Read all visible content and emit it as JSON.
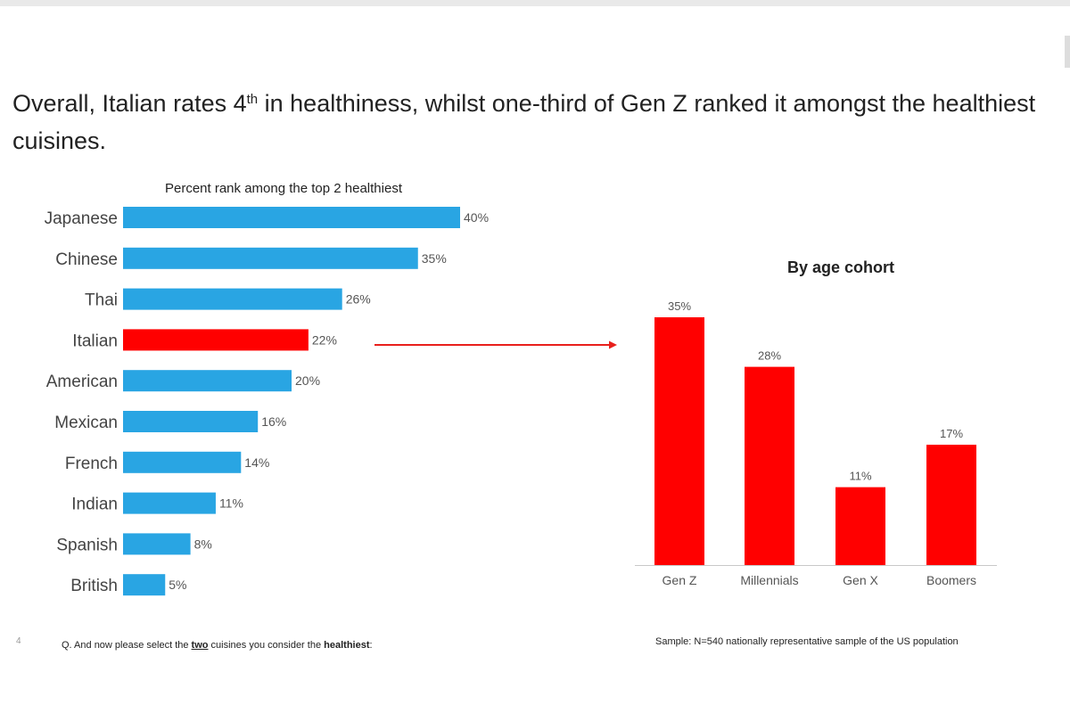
{
  "headline": {
    "part1": "Overall, Italian rates 4",
    "sup": "th",
    "part2": " in healthiness, whilst one-third of Gen Z ranked it amongst the healthiest cuisines."
  },
  "colors": {
    "blue": "#29a5e3",
    "highlight": "#ff0000",
    "arrow": "#e8201c"
  },
  "chart_data": [
    {
      "type": "bar",
      "orientation": "horizontal",
      "title": "Percent rank among the top 2 healthiest",
      "categories": [
        "Japanese",
        "Chinese",
        "Thai",
        "Italian",
        "American",
        "Mexican",
        "French",
        "Indian",
        "Spanish",
        "British"
      ],
      "values": [
        40,
        35,
        26,
        22,
        20,
        16,
        14,
        11,
        8,
        5
      ],
      "labels": [
        "40%",
        "35%",
        "26%",
        "22%",
        "20%",
        "16%",
        "14%",
        "11%",
        "8%",
        "5%"
      ],
      "highlight": "Italian",
      "xlim": [
        0,
        40
      ],
      "grid": false
    },
    {
      "type": "bar",
      "orientation": "vertical",
      "title": "By age cohort",
      "categories": [
        "Gen Z",
        "Millennials",
        "Gen X",
        "Boomers"
      ],
      "values": [
        35,
        28,
        11,
        17
      ],
      "labels": [
        "35%",
        "28%",
        "11%",
        "17%"
      ],
      "ylim": [
        0,
        35
      ],
      "grid": false
    }
  ],
  "footer": {
    "page_number": "4",
    "question_prefix": "Q. And now please select the ",
    "question_emph1": "two",
    "question_mid": " cuisines you consider the ",
    "question_emph2": "healthiest",
    "question_suffix": ":",
    "sample": "Sample: N=540 nationally representative sample of the US population"
  }
}
